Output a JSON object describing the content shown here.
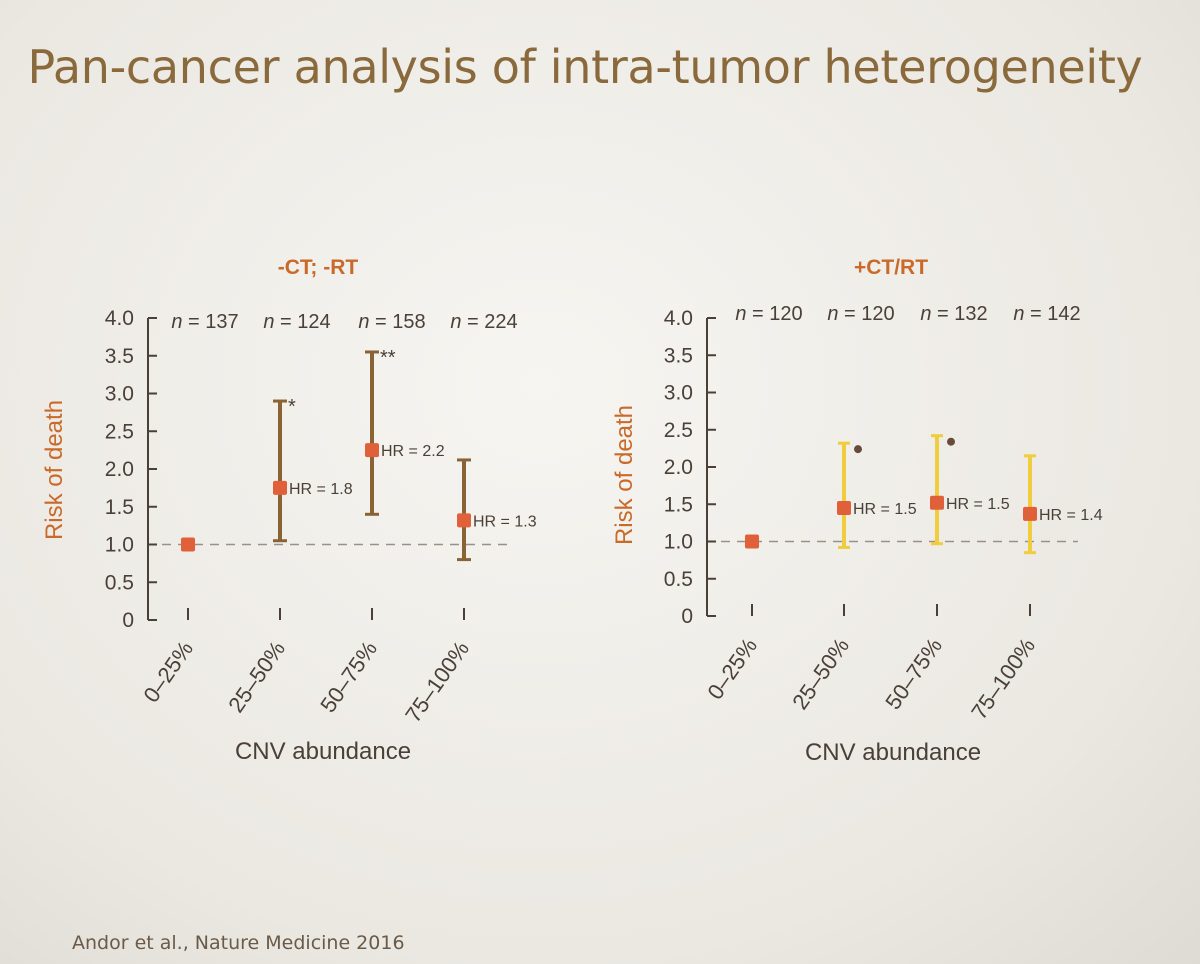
{
  "title": "Pan-cancer analysis of intra-tumor heterogeneity",
  "citation": "Andor et al., Nature Medicine 2016",
  "colors": {
    "title": "#8a6a3c",
    "panel_title": "#c96a2a",
    "point": "#e0603a",
    "bar_left": "#8a6335",
    "bar_right": "#efcd3c",
    "sig_dot": "#6a4a3a",
    "reference_line": "#9a9088",
    "axis": "#4a4038"
  },
  "chart_data": [
    {
      "type": "scatter",
      "title": "-CT; -RT",
      "ylabel": "Risk of death",
      "xlabel": "CNV abundance",
      "ylim": [
        0,
        4.0
      ],
      "yticks": [
        "4.0",
        "3.5",
        "3.0",
        "2.5",
        "2.0",
        "1.5",
        "1.0",
        "0.5",
        "0"
      ],
      "reference_line": 1.0,
      "categories": [
        "0–25%",
        "25–50%",
        "50–75%",
        "75–100%"
      ],
      "n_labels": [
        "n = 137",
        "n = 124",
        "n = 158",
        "n = 224"
      ],
      "hr": [
        1.0,
        1.75,
        2.25,
        1.32
      ],
      "ci_low": [
        null,
        1.05,
        1.4,
        0.8
      ],
      "ci_high": [
        null,
        2.9,
        3.55,
        2.12
      ],
      "hr_labels": [
        "",
        "HR = 1.8",
        "HR = 2.2",
        "HR = 1.3"
      ],
      "significance": [
        "",
        "*",
        "**",
        ""
      ],
      "series_style": "left"
    },
    {
      "type": "scatter",
      "title": "+CT/RT",
      "ylabel": "Risk of death",
      "xlabel": "CNV abundance",
      "ylim": [
        0,
        4.0
      ],
      "yticks": [
        "4.0",
        "3.5",
        "3.0",
        "2.5",
        "2.0",
        "1.5",
        "1.0",
        "0.5",
        "0"
      ],
      "reference_line": 1.0,
      "categories": [
        "0–25%",
        "25–50%",
        "50–75%",
        "75–100%"
      ],
      "n_labels": [
        "n = 120",
        "n = 120",
        "n = 132",
        "n = 142"
      ],
      "hr": [
        1.0,
        1.45,
        1.52,
        1.37
      ],
      "ci_low": [
        null,
        0.92,
        0.97,
        0.85
      ],
      "ci_high": [
        null,
        2.32,
        2.42,
        2.15
      ],
      "hr_labels": [
        "",
        "HR = 1.5",
        "HR = 1.5",
        "HR = 1.4"
      ],
      "significance": [
        "",
        "•",
        "•",
        ""
      ],
      "series_style": "right"
    }
  ]
}
